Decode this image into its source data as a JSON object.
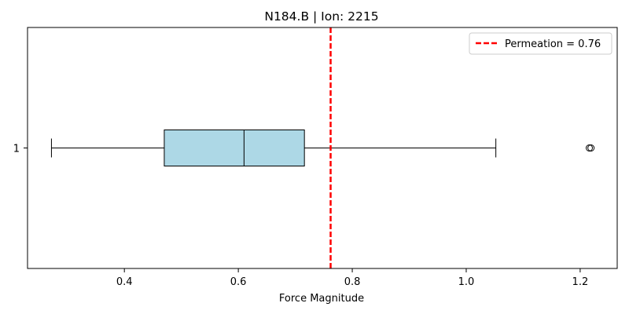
{
  "chart_data": {
    "type": "box",
    "title": "N184.B | Ion: 2215",
    "xlabel": "Force Magnitude",
    "ylabel": "",
    "orientation": "horizontal",
    "xlim": [
      0.23,
      1.265
    ],
    "xticks": [
      0.4,
      0.6,
      0.8,
      1.0,
      1.2
    ],
    "xtick_labels": [
      "0.4",
      "0.6",
      "0.8",
      "1.0",
      "1.2"
    ],
    "ytick_labels": [
      "1"
    ],
    "grid": false,
    "boxes": [
      {
        "label": "1",
        "whisker_low": 0.272,
        "q1": 0.47,
        "median": 0.61,
        "q3": 0.716,
        "whisker_high": 1.052,
        "outliers": [
          1.216,
          1.219
        ],
        "fill": "#add8e6",
        "edge": "#000000"
      }
    ],
    "reference_line": {
      "value": 0.762,
      "label": "Permeation = 0.76",
      "color": "#ff0000",
      "style": "dashed"
    },
    "legend": {
      "placement": "top-right",
      "entries": [
        "Permeation = 0.76"
      ]
    }
  }
}
